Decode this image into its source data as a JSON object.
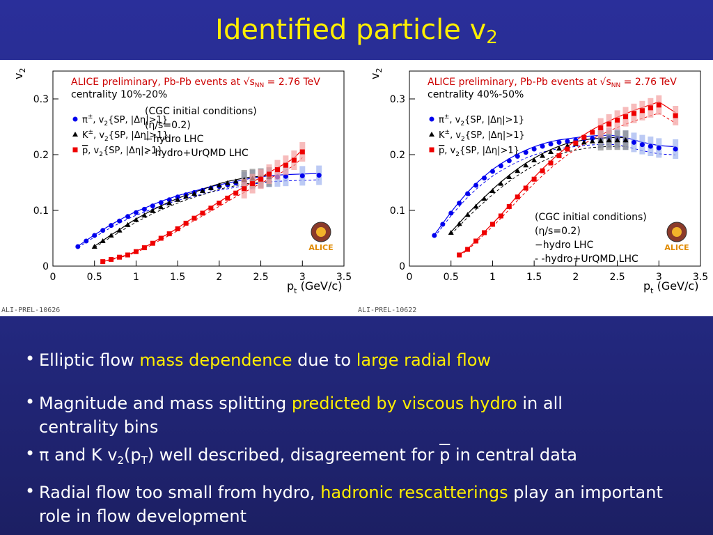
{
  "header": {
    "title": "Identified particle v",
    "title_sub": "2"
  },
  "chart_data": [
    {
      "type": "scatter",
      "label_main": "ALICE preliminary, Pb-Pb events at √s",
      "label_nn": "NN",
      "label_energy": "= 2.76 TeV",
      "centrality": "centrality 10%-20%",
      "ylabel": "v",
      "ylabel_sub": "2",
      "xlabel_p": "p",
      "xlabel_t": "t",
      "xlabel_unit": "(GeV/c)",
      "xlim": [
        0,
        3.5
      ],
      "ylim": [
        0,
        0.35
      ],
      "xticks": [
        "0",
        "0.5",
        "1",
        "1.5",
        "2",
        "2.5",
        "3",
        "3.5"
      ],
      "yticks": [
        "0",
        "0.1",
        "0.2",
        "0.3"
      ],
      "model_text": [
        "(CGC initial conditions)",
        "(η/s=0.2)",
        "−hydro LHC",
        "- -hydro+UrQMD LHC"
      ],
      "model_text_position": "top-center",
      "preliminary_id": "ALI-PREL-10626",
      "logo_text": "ALICE",
      "series": [
        {
          "name": "π±, v2{SP, |Δη|>1}",
          "label_main": "π",
          "label_sup": "±",
          "label_rest": ", v",
          "label_sub": "2",
          "label_tail": "{SP, |Δη|>1}",
          "color": "#0000ee",
          "marker": "circle",
          "x": [
            0.3,
            0.4,
            0.5,
            0.6,
            0.7,
            0.8,
            0.9,
            1.0,
            1.1,
            1.2,
            1.3,
            1.4,
            1.5,
            1.6,
            1.7,
            1.8,
            1.9,
            2.0,
            2.1,
            2.2,
            2.3,
            2.4,
            2.5,
            2.6,
            2.7,
            2.8,
            3.0,
            3.2
          ],
          "y": [
            0.035,
            0.045,
            0.055,
            0.064,
            0.073,
            0.081,
            0.089,
            0.096,
            0.102,
            0.108,
            0.114,
            0.119,
            0.124,
            0.128,
            0.132,
            0.136,
            0.14,
            0.143,
            0.146,
            0.149,
            0.152,
            0.155,
            0.157,
            0.159,
            0.16,
            0.161,
            0.162,
            0.163
          ]
        },
        {
          "name": "K±, v2{SP, |Δη|>1}",
          "label_main": "K",
          "label_sup": "±",
          "label_rest": ", v",
          "label_sub": "2",
          "label_tail": "{SP, |Δη|>1}",
          "color": "#000000",
          "marker": "triangle",
          "x": [
            0.5,
            0.6,
            0.7,
            0.8,
            0.9,
            1.0,
            1.1,
            1.2,
            1.3,
            1.4,
            1.5,
            1.6,
            1.7,
            1.8,
            1.9,
            2.0,
            2.1,
            2.2,
            2.3,
            2.4,
            2.5,
            2.6
          ],
          "y": [
            0.035,
            0.045,
            0.055,
            0.064,
            0.074,
            0.083,
            0.091,
            0.099,
            0.106,
            0.113,
            0.119,
            0.125,
            0.13,
            0.135,
            0.14,
            0.145,
            0.149,
            0.152,
            0.155,
            0.157,
            0.158,
            0.16
          ]
        },
        {
          "name": "p̄, v2{SP, |Δη|>1}",
          "label_main": "p",
          "label_sup": "",
          "label_rest": ", v",
          "label_sub": "2",
          "label_tail": "{SP, |Δη|>1}",
          "color": "#ee0000",
          "marker": "square",
          "x": [
            0.6,
            0.7,
            0.8,
            0.9,
            1.0,
            1.1,
            1.2,
            1.3,
            1.4,
            1.5,
            1.6,
            1.7,
            1.8,
            1.9,
            2.0,
            2.1,
            2.2,
            2.3,
            2.4,
            2.5,
            2.6,
            2.7,
            2.8,
            2.9,
            3.0
          ],
          "y": [
            0.008,
            0.012,
            0.016,
            0.02,
            0.026,
            0.033,
            0.041,
            0.05,
            0.058,
            0.067,
            0.077,
            0.086,
            0.095,
            0.104,
            0.113,
            0.122,
            0.131,
            0.139,
            0.148,
            0.156,
            0.165,
            0.173,
            0.181,
            0.19,
            0.205
          ]
        }
      ]
    },
    {
      "type": "scatter",
      "label_main": "ALICE preliminary, Pb-Pb events at √s",
      "label_nn": "NN",
      "label_energy": "= 2.76 TeV",
      "centrality": "centrality 40%-50%",
      "ylabel": "v",
      "ylabel_sub": "2",
      "xlabel_p": "p",
      "xlabel_t": "t",
      "xlabel_unit": "(GeV/c)",
      "xlim": [
        0,
        3.5
      ],
      "ylim": [
        0,
        0.35
      ],
      "xticks": [
        "0",
        "0.5",
        "1",
        "1.5",
        "2",
        "2.5",
        "3",
        "3.5"
      ],
      "yticks": [
        "0",
        "0.1",
        "0.2",
        "0.3"
      ],
      "model_text": [
        "(CGC initial conditions)",
        "(η/s=0.2)",
        "−hydro LHC",
        "- -hydro+UrQMD LHC"
      ],
      "model_text_position": "bottom-center",
      "preliminary_id": "ALI-PREL-10622",
      "logo_text": "ALICE",
      "series": [
        {
          "name": "π±, v2{SP, |Δη|>1}",
          "label_main": "π",
          "label_sup": "±",
          "label_rest": ", v",
          "label_sub": "2",
          "label_tail": "{SP, |Δη|>1}",
          "color": "#0000ee",
          "marker": "circle",
          "x": [
            0.3,
            0.4,
            0.5,
            0.6,
            0.7,
            0.8,
            0.9,
            1.0,
            1.1,
            1.2,
            1.3,
            1.4,
            1.5,
            1.6,
            1.7,
            1.8,
            1.9,
            2.0,
            2.1,
            2.2,
            2.3,
            2.4,
            2.5,
            2.6,
            2.7,
            2.8,
            2.9,
            3.0,
            3.2
          ],
          "y": [
            0.055,
            0.075,
            0.095,
            0.113,
            0.13,
            0.145,
            0.158,
            0.17,
            0.18,
            0.189,
            0.197,
            0.204,
            0.21,
            0.215,
            0.219,
            0.222,
            0.224,
            0.226,
            0.228,
            0.229,
            0.23,
            0.23,
            0.229,
            0.226,
            0.222,
            0.218,
            0.215,
            0.212,
            0.21
          ]
        },
        {
          "name": "K±, v2{SP, |Δη|>1}",
          "label_main": "K",
          "label_sup": "±",
          "label_rest": ", v",
          "label_sub": "2",
          "label_tail": "{SP, |Δη|>1}",
          "color": "#000000",
          "marker": "triangle",
          "x": [
            0.5,
            0.6,
            0.7,
            0.8,
            0.9,
            1.0,
            1.1,
            1.2,
            1.3,
            1.4,
            1.5,
            1.6,
            1.7,
            1.8,
            1.9,
            2.0,
            2.1,
            2.2,
            2.3,
            2.4,
            2.5,
            2.6
          ],
          "y": [
            0.06,
            0.076,
            0.092,
            0.107,
            0.121,
            0.135,
            0.148,
            0.16,
            0.171,
            0.181,
            0.19,
            0.198,
            0.205,
            0.211,
            0.216,
            0.219,
            0.222,
            0.224,
            0.225,
            0.226,
            0.226,
            0.226
          ]
        },
        {
          "name": "p̄, v2{SP, |Δη|>1}",
          "label_main": "p",
          "label_sup": "",
          "label_rest": ", v",
          "label_sub": "2",
          "label_tail": "{SP, |Δη|>1}",
          "color": "#ee0000",
          "marker": "square",
          "x": [
            0.6,
            0.7,
            0.8,
            0.9,
            1.0,
            1.1,
            1.2,
            1.3,
            1.4,
            1.5,
            1.6,
            1.7,
            1.8,
            1.9,
            2.0,
            2.1,
            2.2,
            2.3,
            2.4,
            2.5,
            2.6,
            2.7,
            2.8,
            2.9,
            3.0,
            3.2
          ],
          "y": [
            0.02,
            0.03,
            0.045,
            0.06,
            0.075,
            0.09,
            0.107,
            0.124,
            0.14,
            0.156,
            0.171,
            0.185,
            0.198,
            0.21,
            0.221,
            0.231,
            0.24,
            0.248,
            0.255,
            0.262,
            0.268,
            0.274,
            0.279,
            0.284,
            0.289,
            0.27
          ]
        }
      ]
    }
  ],
  "bullets": [
    {
      "parts": [
        {
          "text": "Elliptic flow ",
          "hl": false
        },
        {
          "text": "mass dependence",
          "hl": true
        },
        {
          "text": " due to ",
          "hl": false
        },
        {
          "text": "large radial flow",
          "hl": true
        }
      ]
    },
    {
      "parts": [
        {
          "text": "Magnitude and mass splitting ",
          "hl": false
        },
        {
          "text": "predicted by viscous hydro",
          "hl": true
        },
        {
          "text": " in all centrality bins",
          "hl": false
        }
      ]
    },
    {
      "parts": [
        {
          "text": "π and K v",
          "hl": false
        },
        {
          "text": "2",
          "sub": true
        },
        {
          "text": "(p",
          "hl": false
        },
        {
          "text": "T",
          "sub": true
        },
        {
          "text": ") well described, disagreement for ",
          "hl": false
        },
        {
          "text": "p",
          "pbar": true
        },
        {
          "text": " in central data",
          "hl": false
        }
      ]
    },
    {
      "parts": [
        {
          "text": "Radial flow too small from hydro, ",
          "hl": false
        },
        {
          "text": "hadronic rescatterings",
          "hl": true
        },
        {
          "text": " play an important role in flow development",
          "hl": false
        }
      ]
    }
  ]
}
